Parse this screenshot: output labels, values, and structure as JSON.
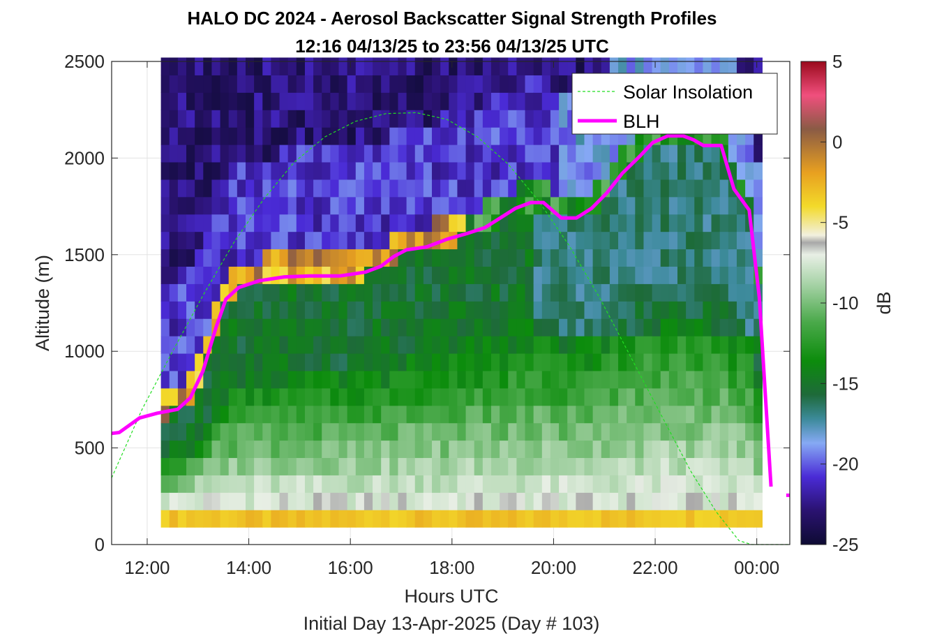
{
  "chart_data": {
    "type": "heatmap",
    "title": "HALO DC 2024 - Aerosol Backscatter Signal Strength Profiles",
    "subtitle": "12:16 04/13/25 to 23:56 04/13/25  UTC",
    "xlabel": "Hours UTC",
    "footer": "Initial Day 13-Apr-2025 (Day # 103)",
    "ylabel": "Altitude (m)",
    "colorbar_label": "dB",
    "x_range_hours": [
      11.3,
      24.65
    ],
    "y_range_m": [
      0,
      2500
    ],
    "x_ticks": [
      {
        "v": 12,
        "label": "12:00"
      },
      {
        "v": 14,
        "label": "14:00"
      },
      {
        "v": 16,
        "label": "16:00"
      },
      {
        "v": 18,
        "label": "18:00"
      },
      {
        "v": 20,
        "label": "20:00"
      },
      {
        "v": 22,
        "label": "22:00"
      },
      {
        "v": 24,
        "label": "00:00"
      }
    ],
    "y_ticks": [
      {
        "v": 0,
        "label": "0"
      },
      {
        "v": 500,
        "label": "500"
      },
      {
        "v": 1000,
        "label": "1000"
      },
      {
        "v": 1500,
        "label": "1500"
      },
      {
        "v": 2000,
        "label": "2000"
      },
      {
        "v": 2500,
        "label": "2500"
      }
    ],
    "colorbar_range_db": [
      -25,
      5
    ],
    "colorbar_ticks": [
      {
        "v": 5,
        "label": "5"
      },
      {
        "v": 0,
        "label": "0"
      },
      {
        "v": -5,
        "label": "-5"
      },
      {
        "v": -10,
        "label": "-10"
      },
      {
        "v": -15,
        "label": "-15"
      },
      {
        "v": -20,
        "label": "-20"
      },
      {
        "v": -25,
        "label": "-25"
      }
    ],
    "data_start_hour": 12.27,
    "data_end_hour": 24.0,
    "bin_width_hours": 0.1667,
    "range_gate_m": 90,
    "legend": {
      "position": "top-right",
      "entries": [
        {
          "label": "Solar Insolation",
          "style": "dashed",
          "color": "#22dd22"
        },
        {
          "label": "BLH",
          "style": "solid",
          "color": "#ff00ff"
        }
      ]
    },
    "series": [
      {
        "name": "BLH",
        "color": "#ff00ff",
        "points": [
          [
            11.3,
            575
          ],
          [
            11.45,
            580
          ],
          [
            11.85,
            655
          ],
          [
            12.2,
            680
          ],
          [
            12.6,
            700
          ],
          [
            12.85,
            760
          ],
          [
            13.1,
            900
          ],
          [
            13.35,
            1120
          ],
          [
            13.55,
            1270
          ],
          [
            13.8,
            1330
          ],
          [
            14.2,
            1365
          ],
          [
            14.7,
            1385
          ],
          [
            15.2,
            1390
          ],
          [
            15.8,
            1390
          ],
          [
            16.3,
            1410
          ],
          [
            16.6,
            1440
          ],
          [
            16.85,
            1490
          ],
          [
            17.1,
            1525
          ],
          [
            17.5,
            1540
          ],
          [
            17.9,
            1580
          ],
          [
            18.3,
            1610
          ],
          [
            18.65,
            1640
          ],
          [
            18.95,
            1690
          ],
          [
            19.25,
            1740
          ],
          [
            19.55,
            1770
          ],
          [
            19.8,
            1770
          ],
          [
            20.15,
            1690
          ],
          [
            20.45,
            1690
          ],
          [
            20.75,
            1740
          ],
          [
            21.05,
            1820
          ],
          [
            21.35,
            1920
          ],
          [
            21.7,
            2010
          ],
          [
            21.95,
            2080
          ],
          [
            22.25,
            2115
          ],
          [
            22.55,
            2115
          ],
          [
            22.75,
            2095
          ],
          [
            22.95,
            2065
          ],
          [
            23.3,
            2065
          ],
          [
            23.55,
            1840
          ],
          [
            23.85,
            1730
          ],
          [
            24.05,
            1280
          ],
          [
            24.28,
            300
          ]
        ],
        "extra_segment": [
          [
            24.58,
            255
          ],
          [
            24.65,
            255
          ]
        ]
      },
      {
        "name": "Solar Insolation",
        "color": "#22dd22",
        "style": "dashed",
        "points": [
          [
            11.3,
            345
          ],
          [
            11.9,
            700
          ],
          [
            12.5,
            1000
          ],
          [
            13.1,
            1290
          ],
          [
            13.7,
            1560
          ],
          [
            14.3,
            1790
          ],
          [
            14.9,
            1980
          ],
          [
            15.5,
            2110
          ],
          [
            16.1,
            2190
          ],
          [
            16.7,
            2230
          ],
          [
            17.3,
            2235
          ],
          [
            17.9,
            2200
          ],
          [
            18.5,
            2110
          ],
          [
            19.1,
            1970
          ],
          [
            19.7,
            1780
          ],
          [
            20.3,
            1550
          ],
          [
            20.9,
            1280
          ],
          [
            21.5,
            980
          ],
          [
            22.1,
            680
          ],
          [
            22.7,
            380
          ],
          [
            23.2,
            170
          ],
          [
            23.65,
            20
          ],
          [
            23.9,
            0
          ],
          [
            24.65,
            0
          ]
        ]
      }
    ]
  }
}
